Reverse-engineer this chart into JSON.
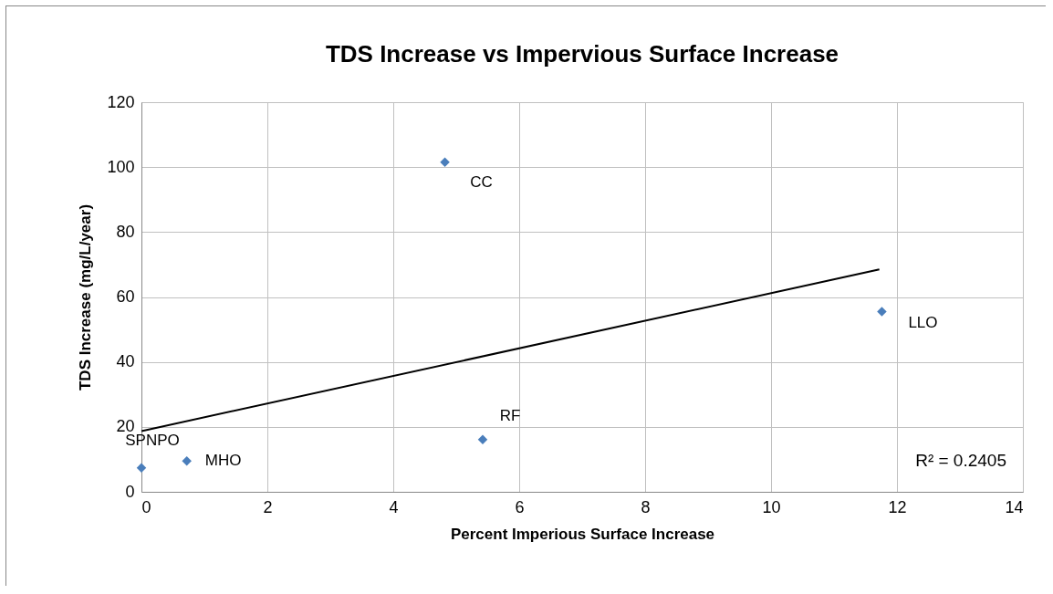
{
  "chart_data": {
    "type": "scatter",
    "title": "TDS Increase vs Impervious Surface Increase",
    "xlabel": "Percent Imperious Surface Increase",
    "ylabel": "TDS Increase (mg/L/year)",
    "xlim": [
      0,
      14
    ],
    "xticks": [
      0,
      2,
      4,
      6,
      8,
      10,
      12,
      14
    ],
    "ylim": [
      0,
      120
    ],
    "yticks": [
      0,
      20,
      40,
      60,
      80,
      100,
      120
    ],
    "grid": true,
    "series": [
      {
        "marker": "diamond",
        "color": "#4a7ebb",
        "x": [
          0,
          0.72,
          4.82,
          5.42,
          11.76
        ],
        "values": [
          7.4,
          9.5,
          101.5,
          16.1,
          55.5
        ]
      },
      {
        "type": "line",
        "marker": "none",
        "line_style": "solid",
        "color": "#000000",
        "x": [
          0,
          11.72
        ],
        "values": [
          18.7,
          68.5
        ]
      }
    ],
    "annotations": [
      {
        "text": "SPNPO",
        "x": 0,
        "y": 7.4
      },
      {
        "text": "MHO",
        "x": 0.72,
        "y": 9.5
      },
      {
        "text": "CC",
        "x": 4.82,
        "y": 101.5
      },
      {
        "text": "RF",
        "x": 5.42,
        "y": 16.1
      },
      {
        "text": "LLO",
        "x": 11.76,
        "y": 55.5
      },
      "R² = 0.2405"
    ]
  }
}
